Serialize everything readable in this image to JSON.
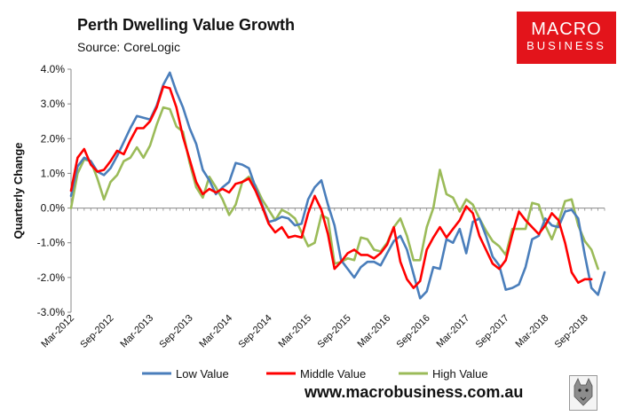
{
  "header": {
    "title": "Perth Dwelling Value Growth",
    "source": "Source: CoreLogic",
    "logo_line1": "MACRO",
    "logo_line2": "BUSINESS",
    "website": "www.macrobusiness.com.au"
  },
  "colors": {
    "low": "#4a7ebb",
    "middle": "#ff0000",
    "high": "#9bbb59",
    "logo_bg": "#e3141b"
  },
  "chart_data": {
    "type": "line",
    "title": "Perth Dwelling Value Growth",
    "xlabel": "",
    "ylabel": "Quarterly Change",
    "ylim": [
      -3,
      4
    ],
    "yticks": [
      -3,
      -2,
      -1,
      0,
      1,
      2,
      3,
      4
    ],
    "ytick_labels": [
      "-3.0%",
      "-2.0%",
      "-1.0%",
      "0.0%",
      "1.0%",
      "2.0%",
      "3.0%",
      "4.0%"
    ],
    "x_tick_labels": [
      {
        "label": "Mar-2012",
        "index": 0
      },
      {
        "label": "Sep-2012",
        "index": 6
      },
      {
        "label": "Mar-2013",
        "index": 12
      },
      {
        "label": "Sep-2013",
        "index": 18
      },
      {
        "label": "Mar-2014",
        "index": 24
      },
      {
        "label": "Sep-2014",
        "index": 30
      },
      {
        "label": "Mar-2015",
        "index": 36
      },
      {
        "label": "Sep-2015",
        "index": 42
      },
      {
        "label": "Mar-2016",
        "index": 48
      },
      {
        "label": "Sep-2016",
        "index": 54
      },
      {
        "label": "Mar-2017",
        "index": 60
      },
      {
        "label": "Sep-2017",
        "index": 66
      },
      {
        "label": "Mar-2018",
        "index": 72
      },
      {
        "label": "Sep-2018",
        "index": 78
      }
    ],
    "legend_position": "bottom",
    "series": [
      {
        "name": "Low Value",
        "color": "#4a7ebb",
        "values": [
          0.35,
          1.2,
          1.45,
          1.35,
          1.05,
          0.95,
          1.15,
          1.5,
          1.9,
          2.3,
          2.65,
          2.6,
          2.55,
          2.95,
          3.55,
          3.9,
          3.35,
          2.9,
          2.3,
          1.85,
          1.1,
          0.8,
          0.4,
          0.6,
          0.75,
          1.3,
          1.25,
          1.15,
          0.6,
          0.1,
          -0.4,
          -0.35,
          -0.25,
          -0.3,
          -0.5,
          -0.45,
          0.25,
          0.6,
          0.8,
          0.1,
          -0.5,
          -1.5,
          -1.75,
          -2.0,
          -1.7,
          -1.55,
          -1.55,
          -1.65,
          -1.3,
          -0.95,
          -0.8,
          -1.2,
          -1.9,
          -2.6,
          -2.4,
          -1.7,
          -1.75,
          -0.9,
          -1.0,
          -0.6,
          -1.3,
          -0.4,
          -0.3,
          -0.8,
          -1.4,
          -1.65,
          -2.35,
          -2.3,
          -2.2,
          -1.7,
          -0.9,
          -0.8,
          -0.3,
          -0.5,
          -0.55,
          -0.1,
          -0.05,
          -0.3,
          -1.35,
          -2.3,
          -2.5,
          -1.85
        ]
      },
      {
        "name": "Middle Value",
        "color": "#ff0000",
        "values": [
          0.5,
          1.45,
          1.7,
          1.25,
          1.05,
          1.1,
          1.35,
          1.65,
          1.55,
          1.95,
          2.3,
          2.3,
          2.5,
          2.9,
          3.5,
          3.45,
          2.9,
          2.05,
          1.4,
          0.75,
          0.4,
          0.55,
          0.45,
          0.55,
          0.45,
          0.7,
          0.75,
          0.85,
          0.5,
          0.05,
          -0.45,
          -0.7,
          -0.55,
          -0.85,
          -0.8,
          -0.85,
          -0.15,
          0.35,
          -0.05,
          -0.75,
          -1.75,
          -1.55,
          -1.3,
          -1.2,
          -1.35,
          -1.35,
          -1.45,
          -1.3,
          -1.05,
          -0.55,
          -1.55,
          -2.05,
          -2.3,
          -2.1,
          -1.2,
          -0.85,
          -0.55,
          -0.85,
          -0.6,
          -0.35,
          0.05,
          -0.15,
          -0.8,
          -1.2,
          -1.6,
          -1.75,
          -1.5,
          -0.75,
          -0.1,
          -0.35,
          -0.55,
          -0.75,
          -0.5,
          -0.15,
          -0.35,
          -1.0,
          -1.85,
          -2.15,
          -2.05,
          -2.05
        ]
      },
      {
        "name": "High Value",
        "color": "#9bbb59",
        "values": [
          0.0,
          1.0,
          1.4,
          1.35,
          0.85,
          0.25,
          0.75,
          0.95,
          1.35,
          1.45,
          1.75,
          1.45,
          1.8,
          2.4,
          2.9,
          2.85,
          2.35,
          2.2,
          1.3,
          0.6,
          0.3,
          0.9,
          0.6,
          0.25,
          -0.2,
          0.1,
          0.75,
          0.9,
          0.65,
          0.25,
          -0.05,
          -0.35,
          -0.05,
          -0.15,
          -0.3,
          -0.7,
          -1.1,
          -1.0,
          -0.2,
          -0.3,
          -1.6,
          -1.55,
          -1.45,
          -1.5,
          -0.85,
          -0.9,
          -1.2,
          -1.25,
          -1.0,
          -0.55,
          -0.3,
          -0.8,
          -1.5,
          -1.5,
          -0.55,
          0.0,
          1.1,
          0.4,
          0.3,
          -0.1,
          0.25,
          0.1,
          -0.3,
          -0.65,
          -0.95,
          -1.1,
          -1.35,
          -0.6,
          -0.6,
          -0.6,
          0.15,
          0.1,
          -0.5,
          -0.9,
          -0.4,
          0.2,
          0.25,
          -0.5,
          -0.95,
          -1.2,
          -1.75
        ]
      }
    ]
  }
}
